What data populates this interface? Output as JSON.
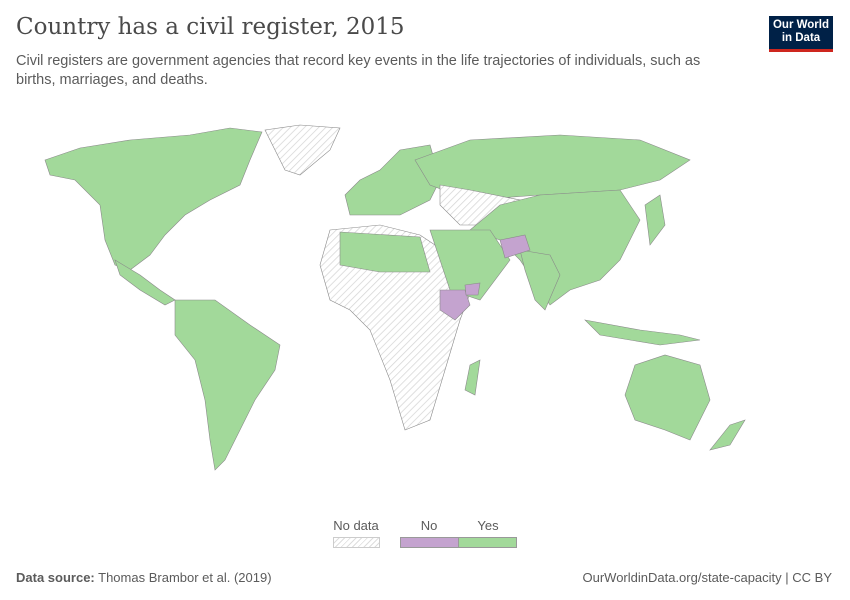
{
  "title": "Country has a civil register, 2015",
  "subtitle": "Civil registers are government agencies that record key events in the life trajectories of individuals, such as births, marriages, and deaths.",
  "logo": {
    "line1": "Our World",
    "line2": "in Data"
  },
  "legend": {
    "no_data": "No data",
    "no": "No",
    "yes": "Yes"
  },
  "colors": {
    "yes": "#a2d99a",
    "no": "#c4a3cf",
    "no_data": "#e8e8e8",
    "border": "#8a8a8a"
  },
  "footer": {
    "source_label": "Data source:",
    "source": "Thomas Brambor et al. (2019)",
    "link": "OurWorldinData.org/state-capacity | CC BY"
  }
}
